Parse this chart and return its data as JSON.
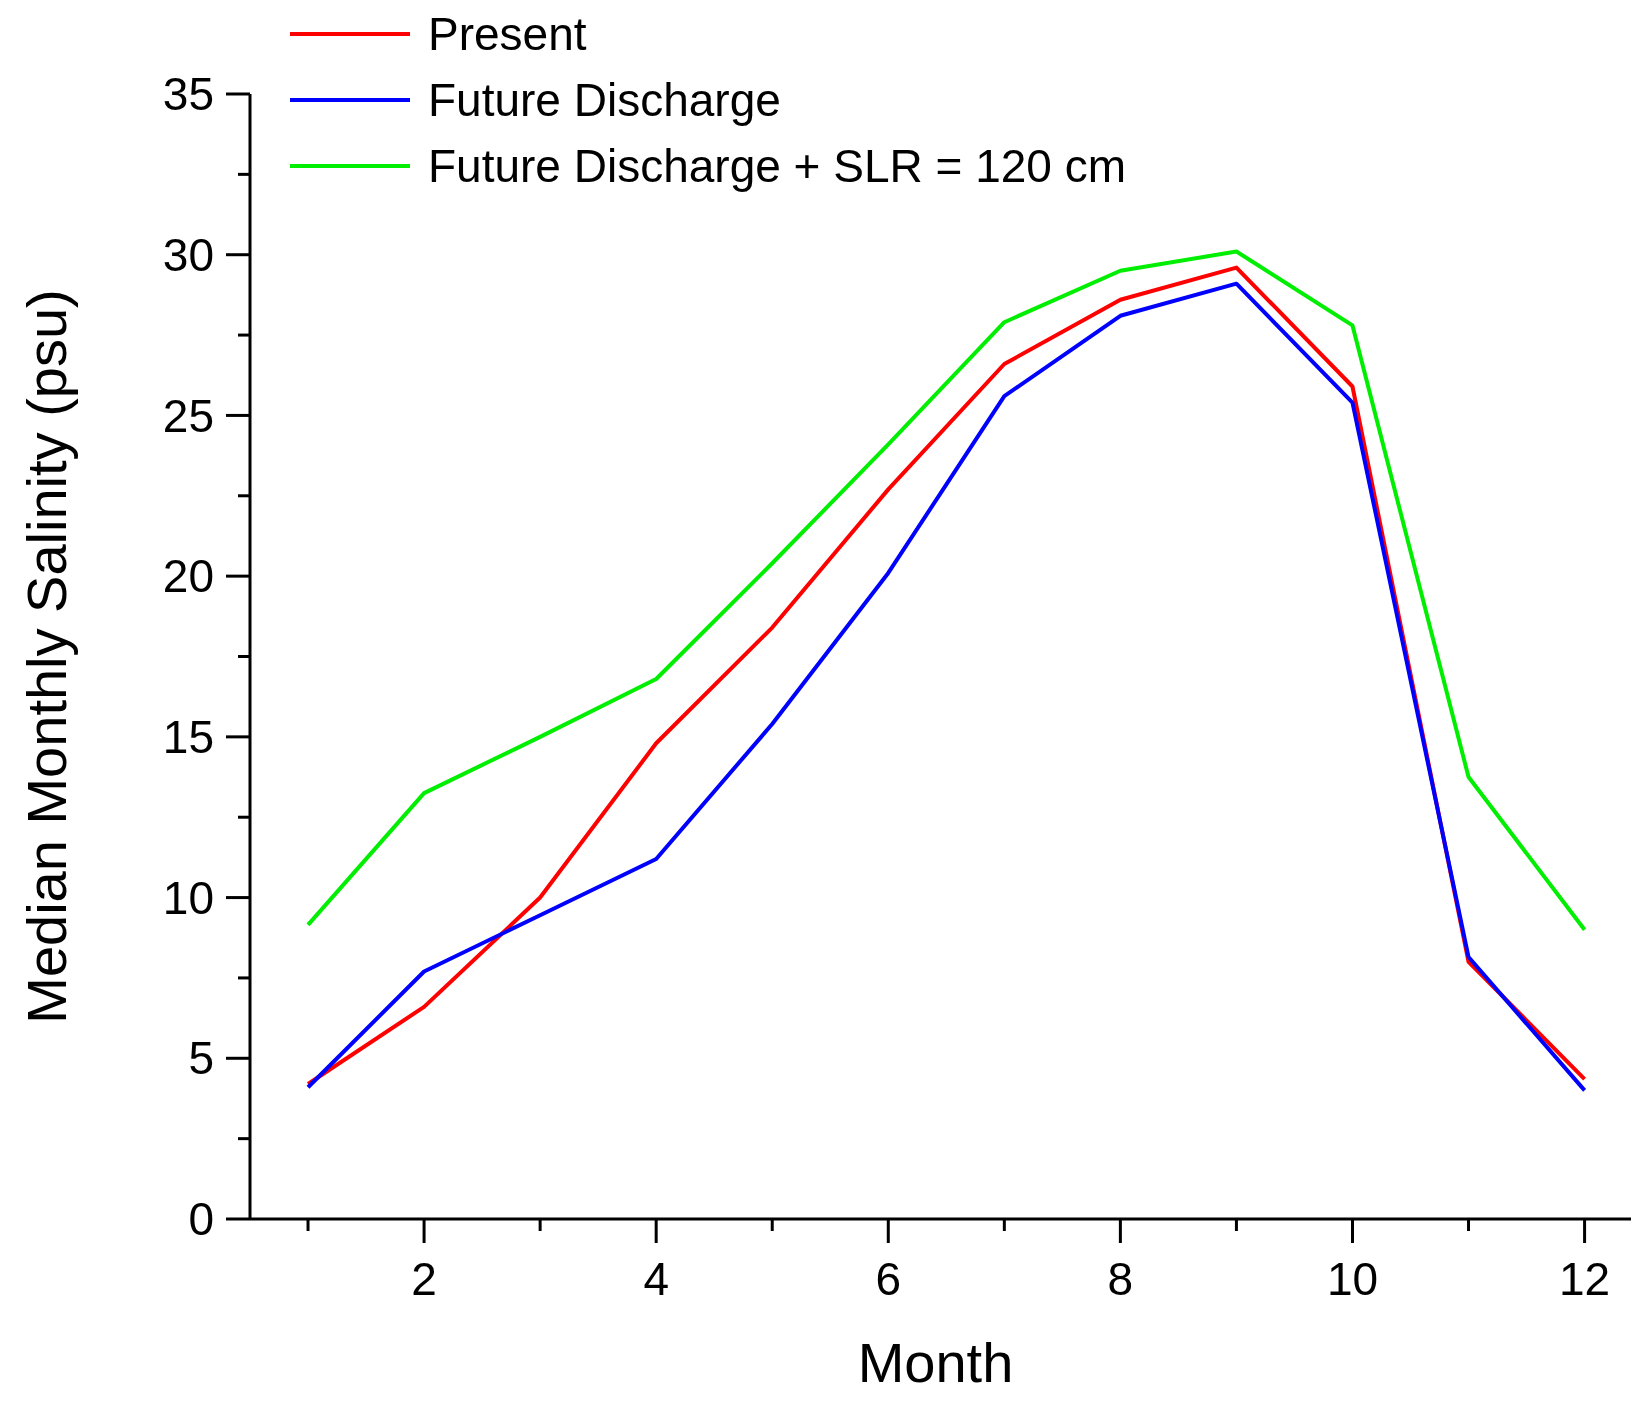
{
  "chart_data": {
    "type": "line",
    "xlabel": "Month",
    "ylabel": "Median Monthly Salinity (psu)",
    "x": [
      1,
      2,
      3,
      4,
      5,
      6,
      7,
      8,
      9,
      10,
      11,
      12
    ],
    "series": [
      {
        "name": "Present",
        "color": "#ff0000",
        "values": [
          4.2,
          6.6,
          10.0,
          14.8,
          18.4,
          22.7,
          26.6,
          28.6,
          29.6,
          25.9,
          8.0,
          4.35
        ]
      },
      {
        "name": "Future Discharge",
        "color": "#0000ff",
        "values": [
          4.1,
          7.7,
          9.45,
          11.2,
          15.4,
          20.1,
          25.6,
          28.1,
          29.1,
          25.4,
          8.15,
          4.0
        ]
      },
      {
        "name": "Future Discharge + SLR = 120 cm",
        "color": "#00ee00",
        "values": [
          9.15,
          13.25,
          15.0,
          16.8,
          20.4,
          24.1,
          27.9,
          29.5,
          30.1,
          27.8,
          13.75,
          9.0
        ]
      }
    ],
    "xlim": [
      0.5,
      12.4
    ],
    "xticks": [
      {
        "value": 1,
        "label": null
      },
      2,
      {
        "value": 3,
        "label": null
      },
      4,
      {
        "value": 5,
        "label": null
      },
      6,
      {
        "value": 7,
        "label": null
      },
      8,
      {
        "value": 9,
        "label": null
      },
      10,
      {
        "value": 11,
        "label": null
      },
      12
    ],
    "ylim": [
      0,
      35
    ],
    "yticks": [
      0,
      {
        "value": 2.5,
        "label": null
      },
      5,
      {
        "value": 7.5,
        "label": null
      },
      10,
      {
        "value": 12.5,
        "label": null
      },
      15,
      {
        "value": 17.5,
        "label": null
      },
      20,
      {
        "value": 22.5,
        "label": null
      },
      25,
      {
        "value": 27.5,
        "label": null
      },
      30,
      {
        "value": 32.5,
        "label": null
      },
      35
    ],
    "legend": "top left",
    "grid": false,
    "marker": "none",
    "line_style": "solid"
  }
}
